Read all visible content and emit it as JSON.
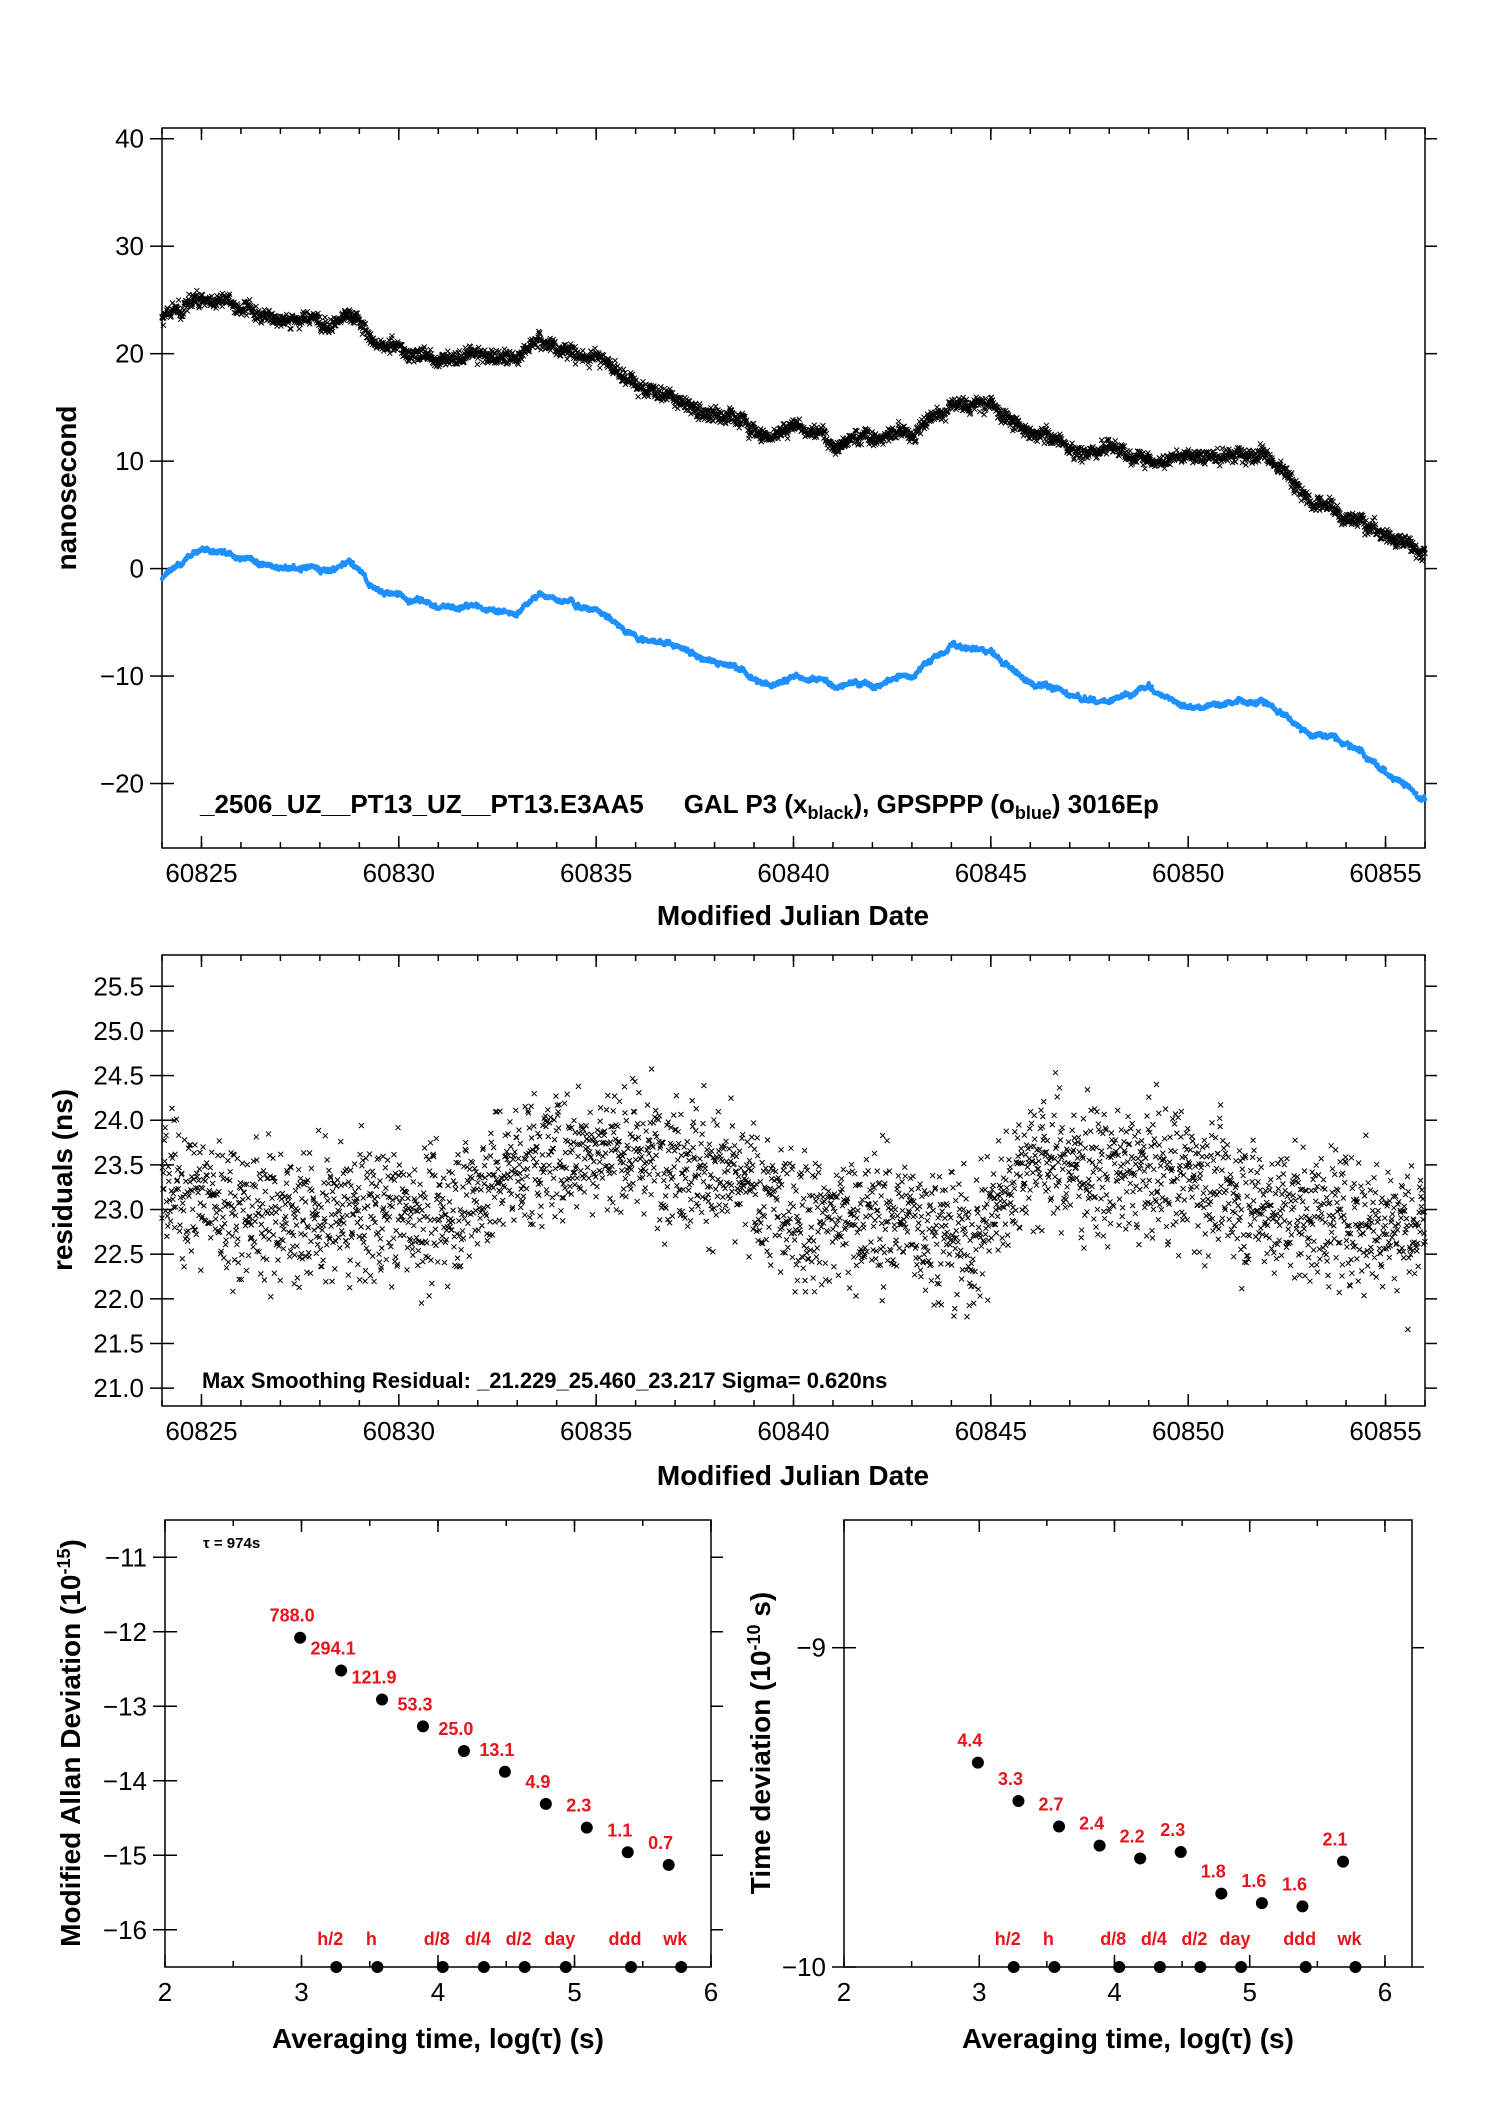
{
  "colors": {
    "black_series": "#000000",
    "blue_series": "#1e90ff",
    "label_red": "#e8141c"
  },
  "chart_data": [
    {
      "type": "scatter",
      "id": "time-comparison",
      "xlabel": "Modified Julian Date",
      "ylabel": "nanosecond",
      "xlim": [
        60824,
        60856
      ],
      "ylim": [
        -26,
        41
      ],
      "xticks": [
        60825,
        60830,
        60835,
        60840,
        60845,
        60850,
        60855
      ],
      "yticks": [
        -20,
        -10,
        0,
        10,
        20,
        30,
        40
      ],
      "ytick_labels": [
        "−20",
        "−10",
        "0",
        "10",
        "20",
        "30",
        "40"
      ],
      "legend": {
        "id": "_2506_UZ__PT13_UZ__PT13.E3AA5",
        "black_series": "GAL P3 (x",
        "black_sub": "black",
        "sep": "),  GPSPPP (o",
        "blue_sub": "blue",
        "tail": ")  3016Ep"
      },
      "series": [
        {
          "marker": "x",
          "color": "#000000",
          "x": [
            60824,
            60825,
            60826,
            60827,
            60828,
            60828.7,
            60829.5,
            60830,
            60831,
            60832,
            60833,
            60833.6,
            60834.4,
            60835,
            60836,
            60837,
            60838,
            60839,
            60839.5,
            60840,
            60841,
            60842,
            60843,
            60844,
            60845,
            60846,
            60847,
            60848,
            60849,
            60850,
            60851,
            60852,
            60853,
            60854,
            60855,
            60856
          ],
          "y": [
            23,
            25.5,
            24,
            23,
            23,
            23.5,
            21,
            20.5,
            19.5,
            20,
            20,
            21,
            20.5,
            19.5,
            17,
            16,
            14.5,
            12.5,
            12,
            13.5,
            12,
            12,
            12.5,
            15.5,
            15.5,
            13,
            11.5,
            11,
            10,
            10.5,
            10.5,
            10.5,
            7,
            5,
            3,
            1.5
          ]
        },
        {
          "marker": "o",
          "color": "#1e90ff",
          "x": [
            60824,
            60825,
            60826,
            60827,
            60828,
            60828.7,
            60829.5,
            60830,
            60831,
            60832,
            60833,
            60833.6,
            60834.4,
            60835,
            60836,
            60837,
            60838,
            60839,
            60839.5,
            60840,
            60841,
            60842,
            60843,
            60844,
            60845,
            60846,
            60847,
            60848,
            60849,
            60850,
            60851,
            60852,
            60853,
            60854,
            60855,
            60856
          ],
          "y": [
            -1,
            2,
            0.8,
            0,
            0,
            0.5,
            -2,
            -2.5,
            -3.5,
            -3.5,
            -4,
            -2.5,
            -3,
            -4,
            -6.5,
            -7,
            -8.5,
            -10.5,
            -11,
            -10,
            -10.5,
            -11,
            -10,
            -7,
            -7.5,
            -10.5,
            -11.5,
            -12.5,
            -11,
            -13,
            -12.5,
            -12.5,
            -15,
            -16,
            -19,
            -21.5
          ]
        }
      ]
    },
    {
      "type": "scatter",
      "id": "residuals",
      "xlabel": "Modified Julian Date",
      "ylabel": "residuals (ns)",
      "xlim": [
        60824,
        60856
      ],
      "ylim": [
        20.8,
        25.85
      ],
      "xticks": [
        60825,
        60830,
        60835,
        60840,
        60845,
        60850,
        60855
      ],
      "yticks": [
        21.0,
        21.5,
        22.0,
        22.5,
        23.0,
        23.5,
        24.0,
        24.5,
        25.0,
        25.5
      ],
      "ytick_labels": [
        "21.0",
        "21.5",
        "22.0",
        "22.5",
        "23.0",
        "23.5",
        "24.0",
        "24.5",
        "25.0",
        "25.5"
      ],
      "annotation": "Max Smoothing Residual: _21.229_25.460_23.217  Sigma= 0.620ns",
      "trend_x": [
        60824,
        60826,
        60828,
        60830,
        60831,
        60833,
        60835,
        60837,
        60839,
        60840,
        60842,
        60843,
        60844.5,
        60846,
        60848,
        60850,
        60852,
        60854,
        60856
      ],
      "trend_y": [
        23.3,
        23.0,
        22.9,
        23.0,
        22.9,
        23.5,
        23.7,
        23.6,
        23.2,
        22.9,
        22.9,
        22.9,
        22.6,
        23.6,
        23.4,
        23.4,
        23.0,
        22.9,
        22.8
      ]
    },
    {
      "type": "scatter",
      "id": "modified-allan-deviation",
      "xlabel": "Averaging time, log(τ) (s)",
      "ylabel_main": "Modified Allan Deviation (10",
      "ylabel_sup": "-15",
      "ylabel_tail": ")",
      "xlim": [
        2,
        6
      ],
      "ylim": [
        -16.5,
        -10.5
      ],
      "xticks": [
        2,
        3,
        4,
        5,
        6
      ],
      "yticks": [
        -11,
        -12,
        -13,
        -14,
        -15,
        -16
      ],
      "ytick_labels": [
        "−11",
        "−12",
        "−13",
        "−14",
        "−15",
        "−16"
      ],
      "tau_note": "τ = 974s",
      "points": [
        {
          "x": 2.99,
          "y": -12.08,
          "label": "788.0"
        },
        {
          "x": 3.29,
          "y": -12.52,
          "label": "294.1"
        },
        {
          "x": 3.59,
          "y": -12.91,
          "label": "121.9"
        },
        {
          "x": 3.89,
          "y": -13.27,
          "label": "53.3"
        },
        {
          "x": 4.19,
          "y": -13.6,
          "label": "25.0"
        },
        {
          "x": 4.49,
          "y": -13.88,
          "label": "13.1"
        },
        {
          "x": 4.79,
          "y": -14.31,
          "label": "4.9"
        },
        {
          "x": 5.09,
          "y": -14.63,
          "label": "2.3"
        },
        {
          "x": 5.39,
          "y": -14.96,
          "label": "1.1"
        },
        {
          "x": 5.69,
          "y": -15.13,
          "label": "0.7"
        }
      ],
      "markers": [
        {
          "x": 3.255,
          "label": "h/2"
        },
        {
          "x": 3.556,
          "label": "h"
        },
        {
          "x": 4.035,
          "label": "d/8"
        },
        {
          "x": 4.336,
          "label": "d/4"
        },
        {
          "x": 4.635,
          "label": "d/2"
        },
        {
          "x": 4.936,
          "label": "day"
        },
        {
          "x": 5.414,
          "label": "ddd"
        },
        {
          "x": 5.782,
          "label": "wk"
        }
      ]
    },
    {
      "type": "scatter",
      "id": "time-deviation",
      "xlabel": "Averaging time, log(τ) (s)",
      "ylabel_main": "Time deviation (10",
      "ylabel_sup": "-10",
      "ylabel_tail": " s)",
      "xlim": [
        2,
        6.2
      ],
      "ylim": [
        -10,
        -8.6
      ],
      "xticks": [
        2,
        3,
        4,
        5,
        6
      ],
      "yticks": [
        -9,
        -10
      ],
      "ytick_labels": [
        "−9",
        "−10"
      ],
      "points": [
        {
          "x": 2.99,
          "y": -9.36,
          "label": "4.4"
        },
        {
          "x": 3.29,
          "y": -9.48,
          "label": "3.3"
        },
        {
          "x": 3.59,
          "y": -9.56,
          "label": "2.7"
        },
        {
          "x": 3.89,
          "y": -9.62,
          "label": "2.4"
        },
        {
          "x": 4.19,
          "y": -9.66,
          "label": "2.2"
        },
        {
          "x": 4.49,
          "y": -9.64,
          "label": "2.3"
        },
        {
          "x": 4.79,
          "y": -9.77,
          "label": "1.8"
        },
        {
          "x": 5.09,
          "y": -9.8,
          "label": "1.6"
        },
        {
          "x": 5.39,
          "y": -9.81,
          "label": "1.6"
        },
        {
          "x": 5.69,
          "y": -9.67,
          "label": "2.1"
        }
      ],
      "markers": [
        {
          "x": 3.255,
          "label": "h/2"
        },
        {
          "x": 3.556,
          "label": "h"
        },
        {
          "x": 4.035,
          "label": "d/8"
        },
        {
          "x": 4.336,
          "label": "d/4"
        },
        {
          "x": 4.635,
          "label": "d/2"
        },
        {
          "x": 4.936,
          "label": "day"
        },
        {
          "x": 5.414,
          "label": "ddd"
        },
        {
          "x": 5.782,
          "label": "wk"
        }
      ]
    }
  ]
}
